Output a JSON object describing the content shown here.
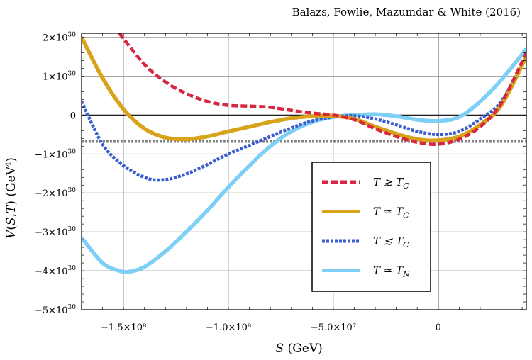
{
  "credit": "Balazs, Fowlie, Mazumdar & White (2016)",
  "chart_data": {
    "type": "line",
    "xlabel": "S (GeV)",
    "ylabel": "V(S,T) (GeV⁴)",
    "xlim": [
      -170000000,
      42000000
    ],
    "ylim": [
      -5e+30,
      2.1e+30
    ],
    "x_ticks": [
      {
        "value": -150000000,
        "label": "−1.5×10⁸"
      },
      {
        "value": -100000000,
        "label": "−1.0×10⁸"
      },
      {
        "value": -50000000,
        "label": "−5.0×10⁷"
      },
      {
        "value": 0,
        "label": "0"
      }
    ],
    "y_ticks": [
      {
        "value": 2e+30,
        "label": "2×10",
        "exp": "30"
      },
      {
        "value": 1e+30,
        "label": "1×10",
        "exp": "30"
      },
      {
        "value": 0,
        "label": "0",
        "exp": ""
      },
      {
        "value": -1e+30,
        "label": "−1×10",
        "exp": "30"
      },
      {
        "value": -2e+30,
        "label": "−2×10",
        "exp": "30"
      },
      {
        "value": -3e+30,
        "label": "−3×10",
        "exp": "30"
      },
      {
        "value": -4e+30,
        "label": "−4×10",
        "exp": "30"
      },
      {
        "value": -5e+30,
        "label": "−5×10",
        "exp": "30"
      }
    ],
    "grid": true,
    "reference_line": {
      "y": -6.8e+29,
      "style": "dotted",
      "color": "#808080"
    },
    "legend_position": "lower-right",
    "series": [
      {
        "name": "T ≳ T_C",
        "legend_label": "T ≳ T",
        "legend_sub": "C",
        "color": "#d7263d",
        "style": "dashed",
        "x": [
          -152000000,
          -140000000,
          -130000000,
          -120000000,
          -110000000,
          -100000000,
          -90000000,
          -80000000,
          -70000000,
          -60000000,
          -50000000,
          -40000000,
          -30000000,
          -20000000,
          -10000000,
          0,
          10000000,
          20000000,
          30000000,
          42000000
        ],
        "y": [
          2.1e+30,
          1.3e+30,
          8.5e+29,
          5.5e+29,
          3.5e+29,
          2.5e+29,
          2.3e+29,
          2e+29,
          1.2e+29,
          5e+28,
          0.0,
          -1.2e+29,
          -3.5e+29,
          -5.5e+29,
          -7e+29,
          -7.5e+29,
          -6.2e+29,
          -3e+29,
          3e+29,
          1.6e+30
        ]
      },
      {
        "name": "T ≃ T_C",
        "legend_label": "T ≃ T",
        "legend_sub": "C",
        "color": "#d9a21b",
        "style": "solid",
        "x": [
          -170000000,
          -160000000,
          -150000000,
          -140000000,
          -130000000,
          -120000000,
          -110000000,
          -100000000,
          -90000000,
          -80000000,
          -70000000,
          -60000000,
          -50000000,
          -40000000,
          -30000000,
          -20000000,
          -10000000,
          0,
          10000000,
          20000000,
          30000000,
          42000000
        ],
        "y": [
          2e+30,
          9.5e+29,
          1.5e+29,
          -3.5e+29,
          -5.8e+29,
          -6.2e+29,
          -5.5e+29,
          -4.2e+29,
          -3e+29,
          -1.8e+29,
          -8e+28,
          -3e+28,
          -2e+28,
          -1e+29,
          -3e+29,
          -4.8e+29,
          -6.2e+29,
          -6.5e+29,
          -5.5e+29,
          -2.5e+29,
          2.5e+29,
          1.5e+30
        ]
      },
      {
        "name": "T ≲ T_C",
        "legend_label": "T ≲ T",
        "legend_sub": "C",
        "color": "#3a5ecf",
        "style": "dotted",
        "x": [
          -170000000,
          -160000000,
          -150000000,
          -140000000,
          -133000000,
          -125000000,
          -115000000,
          -100000000,
          -90000000,
          -80000000,
          -70000000,
          -60000000,
          -50000000,
          -40000000,
          -30000000,
          -20000000,
          -10000000,
          0,
          10000000,
          20000000,
          30000000,
          42000000
        ],
        "y": [
          3.5e+29,
          -7.5e+29,
          -1.3e+30,
          -1.6e+30,
          -1.67e+30,
          -1.6e+30,
          -1.4e+30,
          -1e+30,
          -7.8e+29,
          -5.5e+29,
          -3.3e+29,
          -1.5e+29,
          -5e+28,
          -2e+28,
          -1e+29,
          -2.5e+29,
          -4.2e+29,
          -5e+29,
          -4.2e+29,
          -1e+29,
          3.5e+29,
          1.5e+30
        ]
      },
      {
        "name": "T ≃ T_N",
        "legend_label": "T ≃ T",
        "legend_sub": "N",
        "color": "#7ecff5",
        "style": "solid",
        "x": [
          -170000000,
          -160000000,
          -152000000,
          -147000000,
          -140000000,
          -130000000,
          -120000000,
          -110000000,
          -100000000,
          -90000000,
          -80000000,
          -70000000,
          -60000000,
          -50000000,
          -40000000,
          -30000000,
          -20000000,
          -10000000,
          0,
          10000000,
          20000000,
          30000000,
          42000000
        ],
        "y": [
          -3.15e+30,
          -3.8e+30,
          -4e+30,
          -4.02e+30,
          -3.9e+30,
          -3.5e+30,
          -3e+30,
          -2.45e+30,
          -1.85e+30,
          -1.3e+30,
          -8e+29,
          -4.2e+29,
          -1.8e+29,
          -5e+28,
          0.0,
          2e+28,
          -3e+28,
          -1.2e+29,
          -1.5e+29,
          -5e+28,
          3.5e+29,
          9e+29,
          1.7e+30
        ]
      }
    ]
  }
}
